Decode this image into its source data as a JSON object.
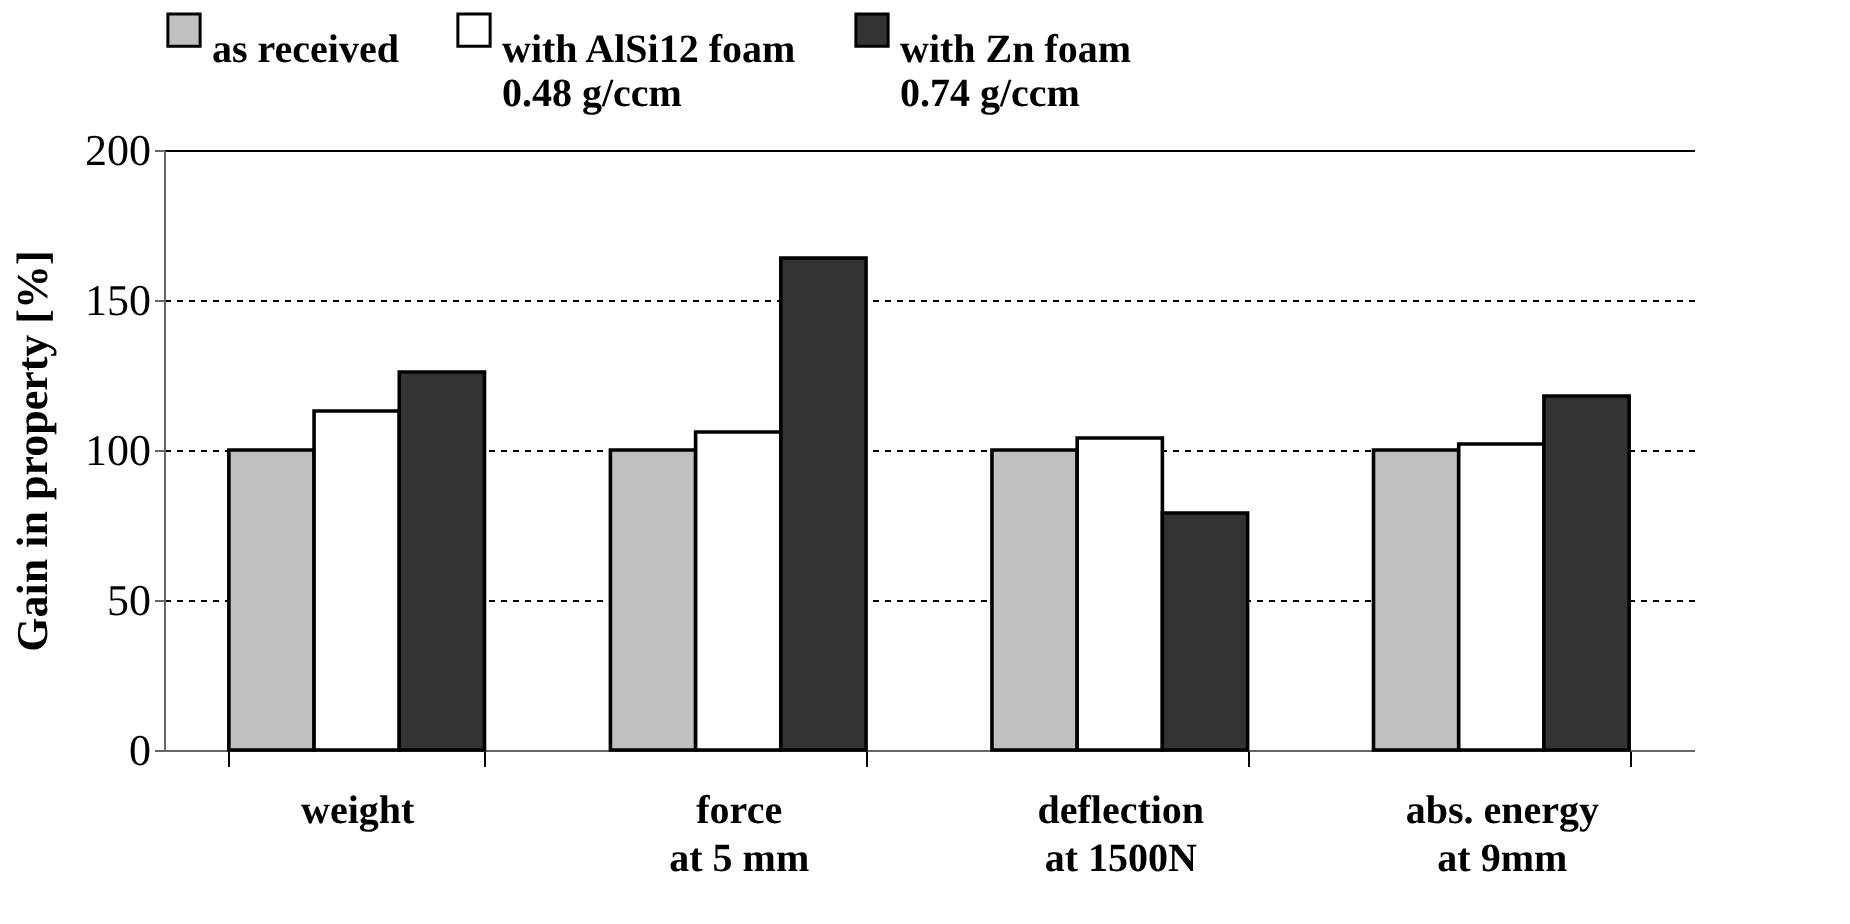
{
  "chart_data": {
    "type": "bar",
    "ylabel": "Gain in property [%]",
    "categories": [
      "weight",
      "force\nat 5 mm",
      "deflection\nat 1500N",
      "abs. energy\nat 9mm"
    ],
    "series": [
      {
        "name": "as received",
        "color": "#c0c0c0",
        "values": [
          100,
          100,
          100,
          100
        ]
      },
      {
        "name": "with AlSi12 foam\n0.48 g/ccm",
        "color": "#ffffff",
        "values": [
          113,
          106,
          104,
          102
        ]
      },
      {
        "name": "with Zn foam\n0.74 g/ccm",
        "color": "#333333",
        "values": [
          126,
          164,
          79,
          118
        ]
      }
    ],
    "ylim": [
      0,
      200
    ],
    "yticks": [
      0,
      50,
      100,
      150,
      200
    ],
    "grid": "y",
    "legend": "top"
  }
}
